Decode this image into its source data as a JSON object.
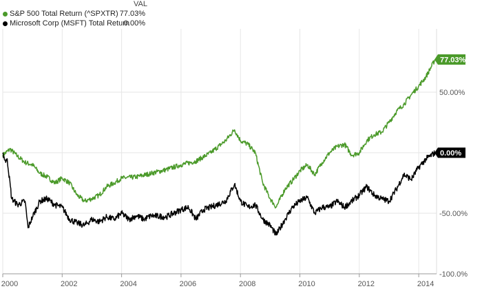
{
  "legend": {
    "header": "VAL",
    "items": [
      {
        "name": "S&P 500 Total Return (^SPXTR)",
        "value": "77.03%",
        "color": "#4b9a2a"
      },
      {
        "name": "Microsoft Corp (MSFT) Total Return",
        "value": "0.00%",
        "color": "#000000"
      }
    ]
  },
  "end_tags": [
    {
      "text": "77.03%",
      "color": "#4b9a2a"
    },
    {
      "text": "0.00%",
      "color": "#000000"
    }
  ],
  "chart_data": {
    "type": "line",
    "xlim": [
      2000,
      2014.6
    ],
    "ylim": [
      -100,
      77
    ],
    "x_ticks": [
      2000,
      2002,
      2004,
      2006,
      2008,
      2010,
      2012,
      2014
    ],
    "x_tick_labels": [
      "2000",
      "2002",
      "2004",
      "2006",
      "2008",
      "2010",
      "2012",
      "2014"
    ],
    "y_ticks": [
      50,
      0,
      -50,
      -100
    ],
    "y_tick_labels": [
      "50.00%",
      "",
      "-50.00%",
      "-100.0%"
    ],
    "grid": true,
    "series": [
      {
        "name": "S&P 500 Total Return (^SPXTR)",
        "color": "#4b9a2a",
        "points": [
          [
            2000.0,
            -2
          ],
          [
            2000.25,
            3
          ],
          [
            2000.5,
            -3
          ],
          [
            2000.75,
            -8
          ],
          [
            2001.0,
            -10
          ],
          [
            2001.25,
            -17
          ],
          [
            2001.5,
            -20
          ],
          [
            2001.75,
            -25
          ],
          [
            2002.0,
            -21
          ],
          [
            2002.25,
            -25
          ],
          [
            2002.5,
            -35
          ],
          [
            2002.75,
            -40
          ],
          [
            2003.0,
            -38
          ],
          [
            2003.25,
            -35
          ],
          [
            2003.5,
            -28
          ],
          [
            2003.75,
            -25
          ],
          [
            2004.0,
            -21
          ],
          [
            2004.5,
            -20
          ],
          [
            2005.0,
            -17
          ],
          [
            2005.5,
            -14
          ],
          [
            2006.0,
            -10
          ],
          [
            2006.5,
            -7
          ],
          [
            2007.0,
            0
          ],
          [
            2007.5,
            10
          ],
          [
            2007.8,
            19
          ],
          [
            2008.0,
            10
          ],
          [
            2008.25,
            7
          ],
          [
            2008.5,
            0
          ],
          [
            2008.75,
            -25
          ],
          [
            2009.0,
            -38
          ],
          [
            2009.2,
            -45
          ],
          [
            2009.5,
            -30
          ],
          [
            2009.75,
            -23
          ],
          [
            2010.0,
            -15
          ],
          [
            2010.25,
            -10
          ],
          [
            2010.5,
            -18
          ],
          [
            2010.75,
            -8
          ],
          [
            2011.0,
            0
          ],
          [
            2011.25,
            5
          ],
          [
            2011.5,
            7
          ],
          [
            2011.75,
            -2
          ],
          [
            2012.0,
            0
          ],
          [
            2012.25,
            10
          ],
          [
            2012.5,
            15
          ],
          [
            2012.75,
            17
          ],
          [
            2013.0,
            25
          ],
          [
            2013.25,
            34
          ],
          [
            2013.5,
            40
          ],
          [
            2013.75,
            48
          ],
          [
            2014.0,
            55
          ],
          [
            2014.25,
            63
          ],
          [
            2014.55,
            77
          ]
        ]
      },
      {
        "name": "Microsoft Corp (MSFT) Total Return",
        "color": "#000000",
        "points": [
          [
            2000.0,
            0
          ],
          [
            2000.1,
            -8
          ],
          [
            2000.15,
            -5
          ],
          [
            2000.3,
            -38
          ],
          [
            2000.5,
            -43
          ],
          [
            2000.75,
            -40
          ],
          [
            2000.85,
            -62
          ],
          [
            2001.0,
            -53
          ],
          [
            2001.25,
            -40
          ],
          [
            2001.5,
            -38
          ],
          [
            2001.75,
            -43
          ],
          [
            2002.0,
            -45
          ],
          [
            2002.25,
            -55
          ],
          [
            2002.5,
            -58
          ],
          [
            2002.75,
            -60
          ],
          [
            2003.0,
            -55
          ],
          [
            2003.25,
            -57
          ],
          [
            2003.5,
            -53
          ],
          [
            2003.75,
            -55
          ],
          [
            2004.0,
            -50
          ],
          [
            2004.25,
            -55
          ],
          [
            2004.5,
            -52
          ],
          [
            2004.75,
            -55
          ],
          [
            2005.0,
            -52
          ],
          [
            2005.5,
            -53
          ],
          [
            2006.0,
            -47
          ],
          [
            2006.25,
            -45
          ],
          [
            2006.5,
            -55
          ],
          [
            2006.75,
            -47
          ],
          [
            2007.0,
            -45
          ],
          [
            2007.5,
            -40
          ],
          [
            2007.8,
            -26
          ],
          [
            2008.0,
            -40
          ],
          [
            2008.25,
            -45
          ],
          [
            2008.5,
            -43
          ],
          [
            2008.75,
            -55
          ],
          [
            2009.0,
            -60
          ],
          [
            2009.2,
            -68
          ],
          [
            2009.5,
            -55
          ],
          [
            2009.75,
            -45
          ],
          [
            2010.0,
            -40
          ],
          [
            2010.25,
            -37
          ],
          [
            2010.5,
            -50
          ],
          [
            2010.75,
            -45
          ],
          [
            2011.0,
            -45
          ],
          [
            2011.25,
            -40
          ],
          [
            2011.5,
            -45
          ],
          [
            2011.75,
            -40
          ],
          [
            2012.0,
            -35
          ],
          [
            2012.25,
            -28
          ],
          [
            2012.5,
            -35
          ],
          [
            2012.75,
            -38
          ],
          [
            2013.0,
            -40
          ],
          [
            2013.25,
            -30
          ],
          [
            2013.5,
            -18
          ],
          [
            2013.75,
            -22
          ],
          [
            2014.0,
            -12
          ],
          [
            2014.25,
            -5
          ],
          [
            2014.55,
            0
          ]
        ]
      }
    ]
  }
}
